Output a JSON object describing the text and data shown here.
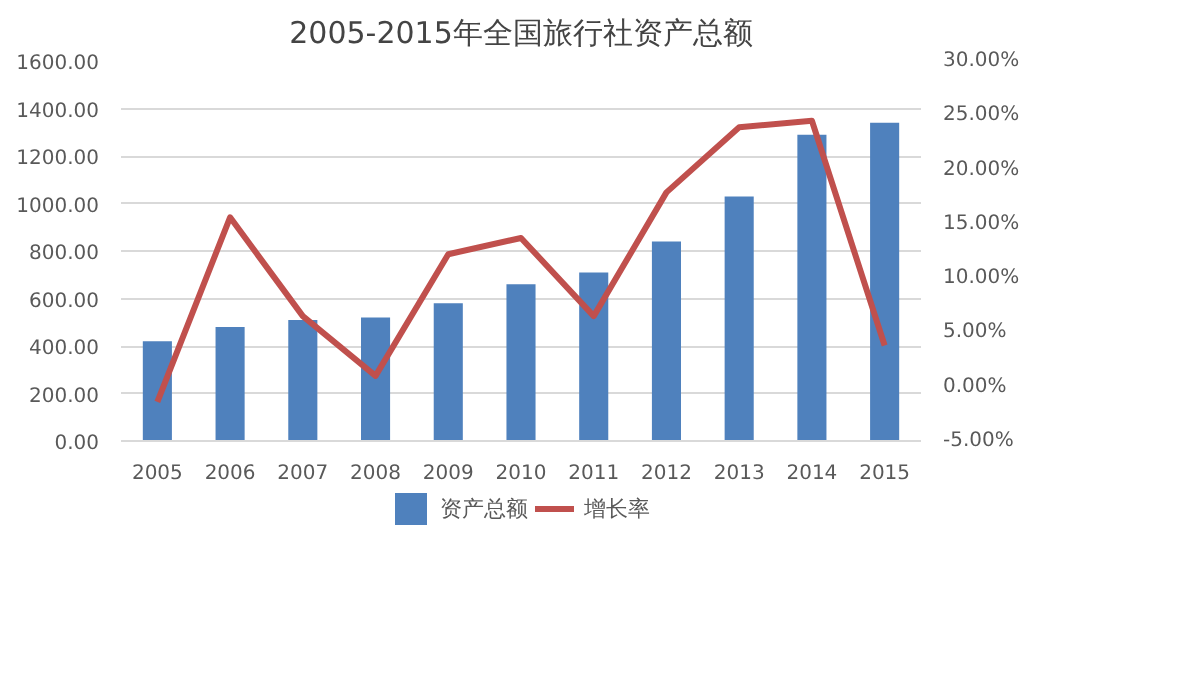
{
  "chart_data": {
    "type": "bar",
    "title": "2005-2015年全国旅行社资产总额",
    "categories": [
      "2005",
      "2006",
      "2007",
      "2008",
      "2009",
      "2010",
      "2011",
      "2012",
      "2013",
      "2014",
      "2015"
    ],
    "series": [
      {
        "name": "资产总额",
        "color": "#4f81bd",
        "values": [
          420,
          480,
          510,
          520,
          580,
          660,
          710,
          840,
          1030,
          1290,
          1340
        ]
      },
      {
        "name": "增长率",
        "type": "line",
        "axis": "y2",
        "color": "#c0504d",
        "values": [
          -1.4,
          15.6,
          6.5,
          1.0,
          12.2,
          13.7,
          6.5,
          17.9,
          23.9,
          24.5,
          3.8
        ]
      }
    ],
    "ylim": [
      0,
      1600
    ],
    "yticks": [
      {
        "value": 0,
        "label": "0.00"
      },
      {
        "value": 200,
        "label": "200.00"
      },
      {
        "value": 400,
        "label": "400.00"
      },
      {
        "value": 600,
        "label": "600.00"
      },
      {
        "value": 800,
        "label": "800.00"
      },
      {
        "value": 1000,
        "label": "1000.00"
      },
      {
        "value": 1200,
        "label": "1200.00"
      },
      {
        "value": 1400,
        "label": "1400.00"
      },
      {
        "value": 1600,
        "label": "1600.00"
      }
    ],
    "y2lim": [
      -5,
      30
    ],
    "y2ticks": [
      {
        "value": -5,
        "label": "-5.00%"
      },
      {
        "value": 0,
        "label": "0.00%"
      },
      {
        "value": 5,
        "label": "5.00%"
      },
      {
        "value": 10,
        "label": "10.00%"
      },
      {
        "value": 15,
        "label": "15.00%"
      },
      {
        "value": 20,
        "label": "20.00%"
      },
      {
        "value": 25,
        "label": "25.00%"
      },
      {
        "value": 30,
        "label": "30.00%"
      }
    ],
    "grid": "y",
    "legend": "bottom",
    "marker": "none",
    "line_style": "solid"
  }
}
